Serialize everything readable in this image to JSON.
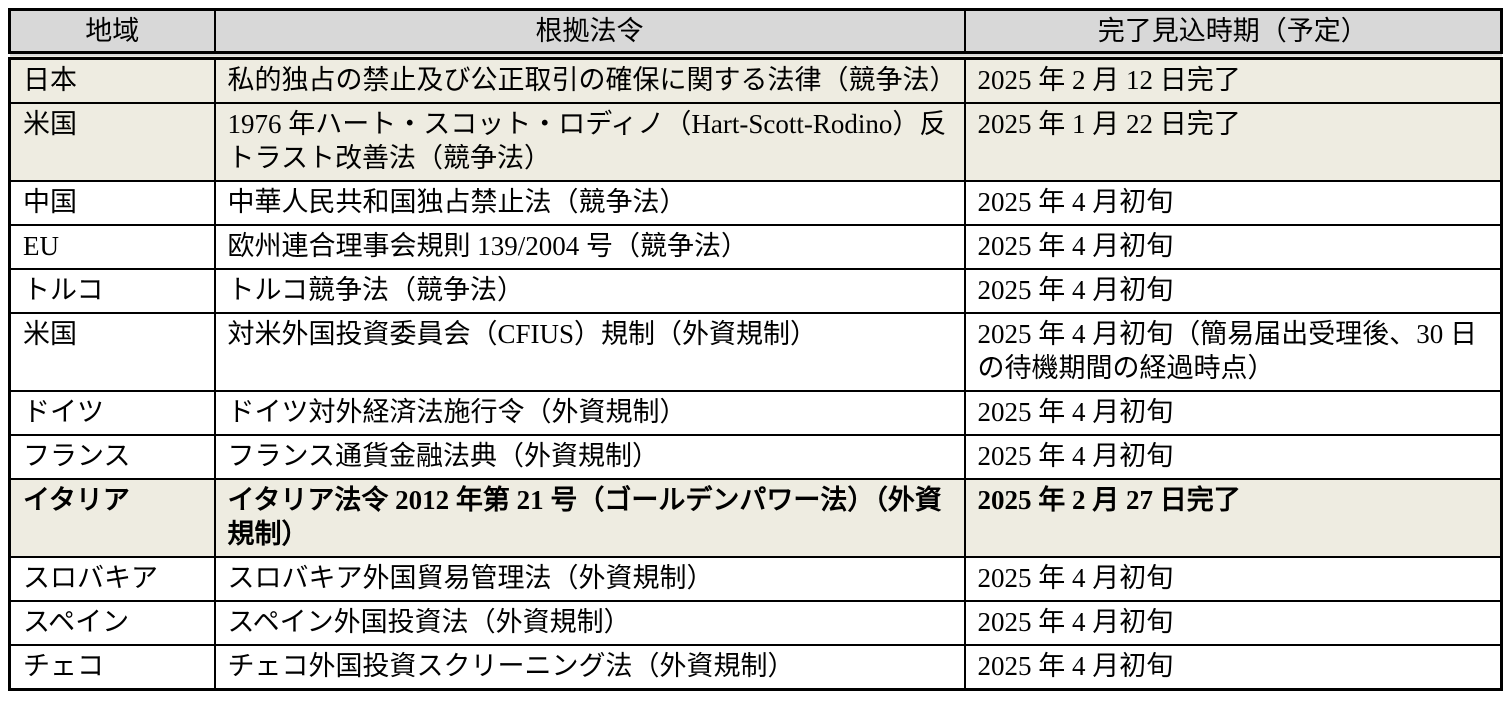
{
  "table": {
    "columns": [
      {
        "label": "地域"
      },
      {
        "label": "根拠法令"
      },
      {
        "label": "完了見込時期（予定）"
      }
    ],
    "rows": [
      {
        "region": "日本",
        "law": "私的独占の禁止及び公正取引の確保に関する法律（競争法）",
        "date": "2025 年 2 月 12 日完了",
        "highlight": true,
        "bold": false
      },
      {
        "region": "米国",
        "law": "1976 年ハート・スコット・ロディノ（Hart-Scott-Rodino）反トラスト改善法（競争法）",
        "date": "2025 年 1 月 22 日完了",
        "highlight": true,
        "bold": false
      },
      {
        "region": "中国",
        "law": "中華人民共和国独占禁止法（競争法）",
        "date": "2025 年 4 月初旬",
        "highlight": false,
        "bold": false
      },
      {
        "region": "EU",
        "law": "欧州連合理事会規則 139/2004 号（競争法）",
        "date": "2025 年 4 月初旬",
        "highlight": false,
        "bold": false
      },
      {
        "region": "トルコ",
        "law": "トルコ競争法（競争法）",
        "date": "2025 年 4 月初旬",
        "highlight": false,
        "bold": false
      },
      {
        "region": "米国",
        "law": "対米外国投資委員会（CFIUS）規制（外資規制）",
        "date": "2025 年 4 月初旬（簡易届出受理後、30 日の待機期間の経過時点）",
        "highlight": false,
        "bold": false
      },
      {
        "region": "ドイツ",
        "law": "ドイツ対外経済法施行令（外資規制）",
        "date": "2025 年 4 月初旬",
        "highlight": false,
        "bold": false
      },
      {
        "region": "フランス",
        "law": "フランス通貨金融法典（外資規制）",
        "date": "2025 年 4 月初旬",
        "highlight": false,
        "bold": false
      },
      {
        "region": "イタリア",
        "law": "イタリア法令 2012 年第 21 号（ゴールデンパワー法）（外資規制）",
        "date": "2025 年 2 月 27 日完了",
        "highlight": true,
        "bold": true
      },
      {
        "region": "スロバキア",
        "law": "スロバキア外国貿易管理法（外資規制）",
        "date": "2025 年 4 月初旬",
        "highlight": false,
        "bold": false
      },
      {
        "region": "スペイン",
        "law": "スペイン外国投資法（外資規制）",
        "date": "2025 年 4 月初旬",
        "highlight": false,
        "bold": false
      },
      {
        "region": "チェコ",
        "law": "チェコ外国投資スクリーニング法（外資規制）",
        "date": "2025 年 4 月初旬",
        "highlight": false,
        "bold": false
      }
    ],
    "colors": {
      "header_bg": "#d8d8d8",
      "highlight_bg": "#eeece1",
      "border": "#000000"
    }
  }
}
